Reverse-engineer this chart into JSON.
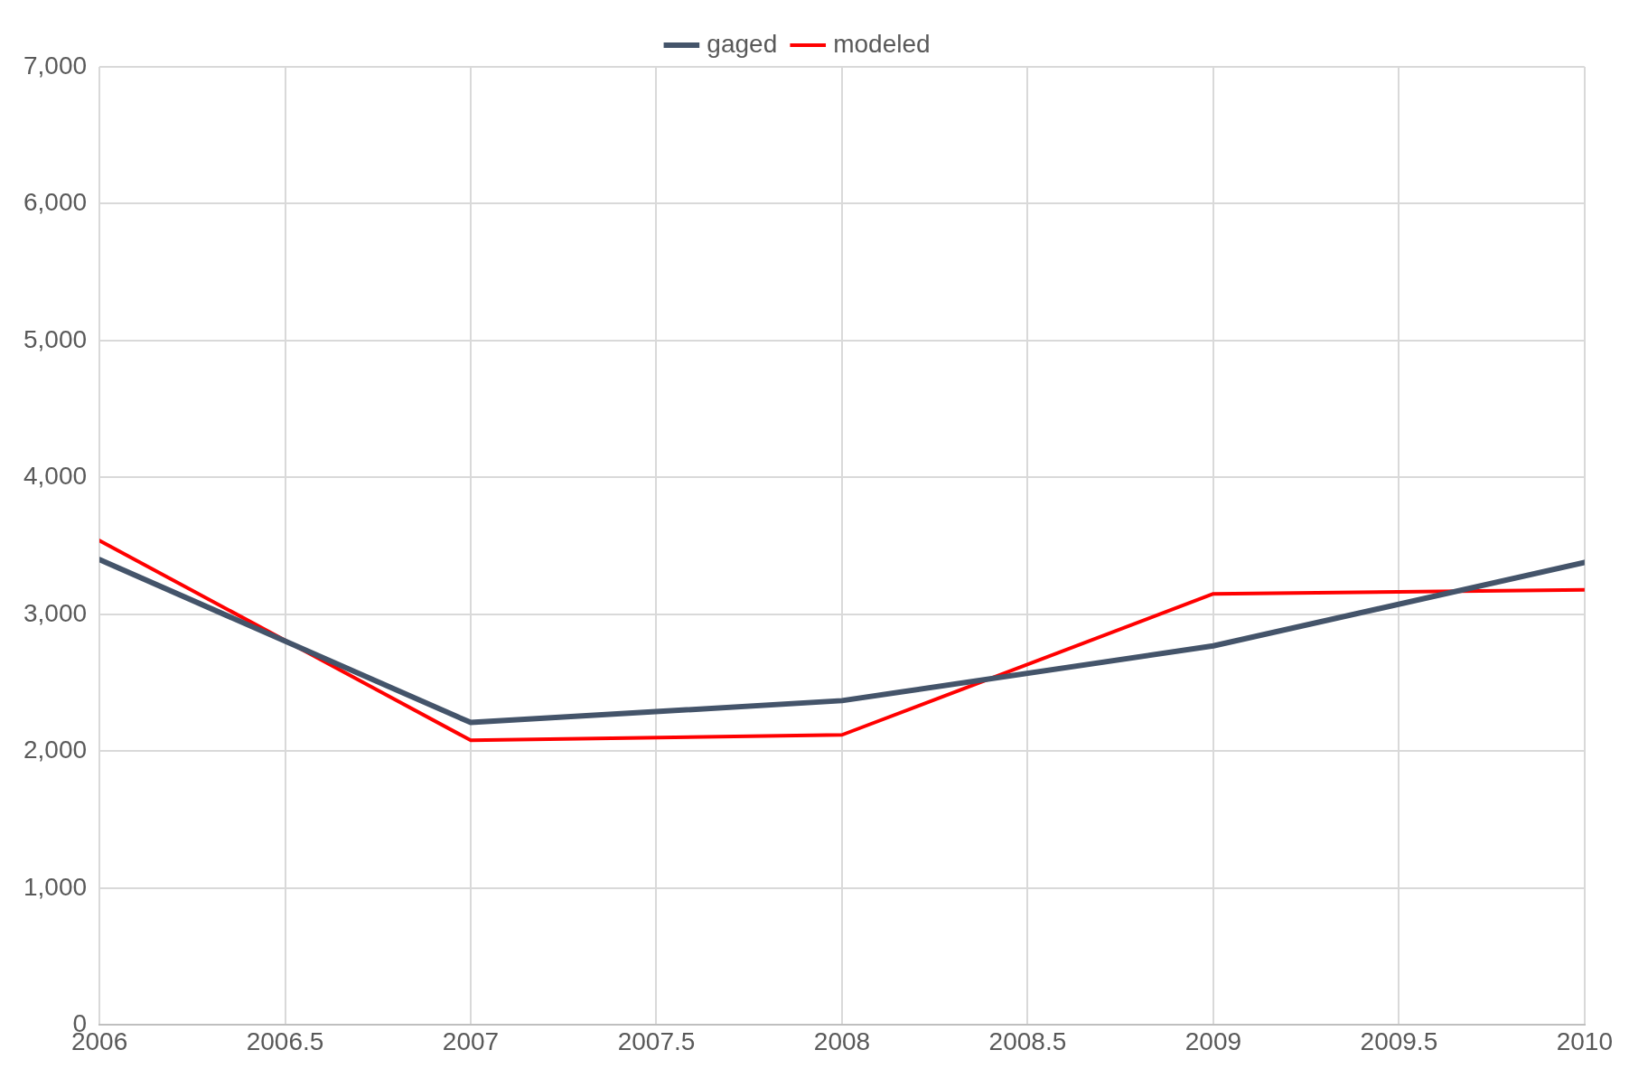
{
  "chart_data": {
    "type": "line",
    "x": [
      2006,
      2007,
      2008,
      2009,
      2010
    ],
    "series": [
      {
        "name": "gaged",
        "color": "#44546a",
        "values": [
          3400,
          2210,
          2370,
          2770,
          3380
        ]
      },
      {
        "name": "modeled",
        "color": "#ff0000",
        "values": [
          3540,
          2080,
          2120,
          3150,
          3180
        ]
      }
    ],
    "xlim": [
      2006,
      2010
    ],
    "xticks": [
      2006,
      2006.5,
      2007,
      2007.5,
      2008,
      2008.5,
      2009,
      2009.5,
      2010
    ],
    "ylim": [
      0,
      7000
    ],
    "yticks": [
      {
        "value": 0,
        "label": "0"
      },
      {
        "value": 1000,
        "label": "1,000"
      },
      {
        "value": 2000,
        "label": "2,000"
      },
      {
        "value": 3000,
        "label": "3,000"
      },
      {
        "value": 4000,
        "label": "4,000"
      },
      {
        "value": 5000,
        "label": "5,000"
      },
      {
        "value": 6000,
        "label": "6,000"
      },
      {
        "value": 7000,
        "label": "7,000"
      }
    ],
    "grid": true,
    "legend": "top",
    "marker": "none",
    "line_style": "solid"
  }
}
